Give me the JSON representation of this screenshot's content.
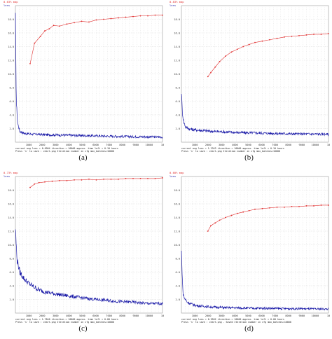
{
  "chart_data": [
    {
      "type": "line",
      "panel_label": "(a)",
      "legend": {
        "map_label": "0.63% map",
        "loss_label": "loss",
        "map_color": "#e03030",
        "loss_color": "#1c1ca8"
      },
      "x_ticks": [
        "1000",
        "2000",
        "3000",
        "4000",
        "5000",
        "6000",
        "7000",
        "8000",
        "9000",
        "10000",
        "10"
      ],
      "y_ticks": [
        "18.0",
        "16.0",
        "14.0",
        "12.0",
        "10.0",
        "8.0",
        "6.0",
        "4.0",
        "2.0"
      ],
      "ylim": [
        0,
        20
      ],
      "xlim": [
        0,
        10000
      ],
      "loss": {
        "x": [
          0,
          60,
          150,
          300,
          600,
          1000,
          2000,
          3000,
          4000,
          5000,
          6000,
          7000,
          8000,
          9000,
          10000
        ],
        "y": [
          18.0,
          6.0,
          2.8,
          1.6,
          1.3,
          1.2,
          1.1,
          1.05,
          1.0,
          0.95,
          0.9,
          0.85,
          0.8,
          0.78,
          0.75
        ]
      },
      "map": {
        "x": [
          1000,
          1300,
          1700,
          2000,
          2300,
          2600,
          3000,
          3500,
          4000,
          4500,
          5000,
          5500,
          6000,
          6500,
          7000,
          7500,
          8000,
          8500,
          9000,
          9500,
          10000
        ],
        "y": [
          11.5,
          14.5,
          15.5,
          16.3,
          16.6,
          17.1,
          17.0,
          17.3,
          17.5,
          17.7,
          17.6,
          17.9,
          18.0,
          18.1,
          18.2,
          18.3,
          18.4,
          18.5,
          18.5,
          18.6,
          18.6
        ]
      },
      "footer": [
        "current avg loss = 0.6964   iteration = 10000   approx. time left = 0.10 hours",
        "Press 's' to save : chart.png   Iteration number   in cfg max_batches=10000"
      ]
    },
    {
      "type": "line",
      "panel_label": "(b)",
      "legend": {
        "map_label": "0.83% map",
        "loss_label": "loss",
        "map_color": "#e03030",
        "loss_color": "#1c1ca8"
      },
      "x_ticks": [
        "1000",
        "2000",
        "3000",
        "4000",
        "5000",
        "6000",
        "7000",
        "8000",
        "9000",
        "10000",
        "10"
      ],
      "y_ticks": [
        "18.0",
        "16.0",
        "14.0",
        "12.0",
        "10.0",
        "8.0",
        "6.0",
        "4.0",
        "2.0"
      ],
      "ylim": [
        0,
        20
      ],
      "xlim": [
        0,
        10000
      ],
      "loss": {
        "x": [
          0,
          60,
          150,
          300,
          600,
          1000,
          2000,
          3000,
          4000,
          5000,
          6000,
          7000,
          8000,
          9000,
          10000
        ],
        "y": [
          7.5,
          4.5,
          3.0,
          2.2,
          1.9,
          1.8,
          1.6,
          1.5,
          1.4,
          1.35,
          1.3,
          1.25,
          1.2,
          1.2,
          1.15
        ]
      },
      "map": {
        "x": [
          1800,
          2000,
          2300,
          2600,
          3000,
          3400,
          3800,
          4200,
          4600,
          5000,
          5500,
          6000,
          6500,
          7000,
          7500,
          8000,
          8500,
          9000,
          9500,
          10000
        ],
        "y": [
          9.6,
          10.2,
          11.0,
          11.8,
          12.6,
          13.2,
          13.6,
          14.0,
          14.3,
          14.6,
          14.8,
          15.0,
          15.2,
          15.4,
          15.5,
          15.6,
          15.7,
          15.8,
          15.8,
          15.9
        ]
      },
      "footer": [
        "current avg loss = 1.2343   iteration = 10000   approx. time left = 0.10 hours",
        "Press 's' to save : chart.png   Iteration number   in cfg max_batches=10000"
      ]
    },
    {
      "type": "line",
      "panel_label": "(c)",
      "legend": {
        "map_label": "0.73% map",
        "loss_label": "loss",
        "map_color": "#e03030",
        "loss_color": "#1c1ca8"
      },
      "x_ticks": [
        "1000",
        "2000",
        "3000",
        "4000",
        "5000",
        "6000",
        "7000",
        "8000",
        "9000",
        "10000",
        "10"
      ],
      "y_ticks": [
        "18.0",
        "16.0",
        "14.0",
        "12.0",
        "10.0",
        "8.0",
        "6.0",
        "4.0",
        "2.0"
      ],
      "ylim": [
        0,
        20
      ],
      "xlim": [
        0,
        10000
      ],
      "loss": {
        "x": [
          0,
          100,
          300,
          600,
          1000,
          1500,
          2000,
          3000,
          4000,
          5000,
          6000,
          7000,
          8000,
          9000,
          10000
        ],
        "y": [
          12.5,
          8.0,
          6.0,
          5.0,
          4.2,
          3.5,
          3.1,
          2.7,
          2.4,
          2.1,
          1.9,
          1.7,
          1.6,
          1.4,
          1.4
        ]
      },
      "map": {
        "x": [
          1000,
          1300,
          1600,
          2000,
          2500,
          3000,
          3500,
          4000,
          4500,
          5000,
          5500,
          6000,
          6500,
          7000,
          7500,
          8000,
          8500,
          9000,
          9500,
          10000
        ],
        "y": [
          18.4,
          18.9,
          19.1,
          19.2,
          19.3,
          19.4,
          19.4,
          19.5,
          19.5,
          19.6,
          19.5,
          19.6,
          19.6,
          19.6,
          19.7,
          19.7,
          19.7,
          19.7,
          19.7,
          19.8
        ]
      },
      "footer": [
        "current avg loss = 1.7840   iteration = 10000   approx. time left = 0.00 hours",
        "Press 's' to save : chart.png   Iteration number   in cfg max_batches=10000"
      ]
    },
    {
      "type": "line",
      "panel_label": "(d)",
      "legend": {
        "map_label": "0.60% map",
        "loss_label": "loss",
        "map_color": "#e03030",
        "loss_color": "#1c1ca8"
      },
      "x_ticks": [
        "1000",
        "2000",
        "3000",
        "4000",
        "5000",
        "6000",
        "7000",
        "8000",
        "9000",
        "10000",
        "10"
      ],
      "y_ticks": [
        "18.0",
        "16.0",
        "14.0",
        "12.0",
        "10.0",
        "8.0",
        "6.0",
        "4.0",
        "2.0"
      ],
      "ylim": [
        0,
        20
      ],
      "xlim": [
        0,
        10000
      ],
      "loss": {
        "x": [
          0,
          100,
          200,
          400,
          700,
          1000,
          2000,
          3000,
          4000,
          5000,
          6000,
          7000,
          8000,
          9000,
          10000
        ],
        "y": [
          9.0,
          3.0,
          2.2,
          1.6,
          1.3,
          1.1,
          0.9,
          0.8,
          0.75,
          0.7,
          0.7,
          0.65,
          0.65,
          0.6,
          0.6
        ]
      },
      "map": {
        "x": [
          1800,
          2000,
          2300,
          2600,
          3000,
          3400,
          3800,
          4200,
          4600,
          5000,
          5500,
          6000,
          6500,
          7000,
          7500,
          8000,
          8500,
          9000,
          9500,
          10000
        ],
        "y": [
          12.0,
          12.8,
          13.2,
          13.6,
          14.0,
          14.3,
          14.6,
          14.8,
          15.0,
          15.2,
          15.3,
          15.4,
          15.5,
          15.5,
          15.6,
          15.6,
          15.7,
          15.7,
          15.8,
          15.8
        ]
      },
      "footer": [
        "current avg loss = 0.9562   iteration = 10000   approx. time left = 0.00 hours",
        "Press 's' to save : chart.png - Saved   Iteration number   in cfg max_batches=10000"
      ]
    }
  ]
}
